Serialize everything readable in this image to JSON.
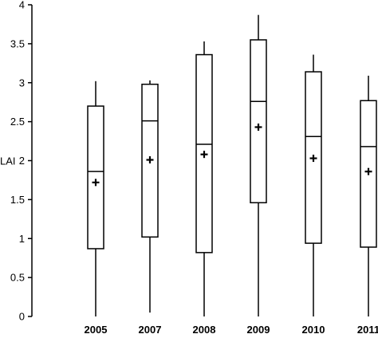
{
  "chart_data": {
    "type": "box",
    "title": "",
    "xlabel": "",
    "ylabel": "LAI",
    "ylim": [
      0,
      4
    ],
    "yticks": [
      "0",
      "0.5",
      "1",
      "1.5",
      "2",
      "2.5",
      "3",
      "3.5",
      "4"
    ],
    "grid": false,
    "legend": "none",
    "categories": [
      "2005",
      "2007",
      "2008",
      "2009",
      "2010",
      "2011"
    ],
    "series": [
      {
        "min": [
          0.0,
          0.05,
          0.0,
          0.0,
          0.0,
          0.0
        ],
        "q1": [
          0.87,
          1.02,
          0.82,
          1.46,
          0.94,
          0.89
        ],
        "median": [
          1.86,
          2.51,
          2.21,
          2.76,
          2.31,
          2.18
        ],
        "q3": [
          2.7,
          2.98,
          3.36,
          3.55,
          3.14,
          2.77
        ],
        "max": [
          3.02,
          3.03,
          3.53,
          3.87,
          3.36,
          3.09
        ],
        "mean": [
          1.72,
          2.01,
          2.08,
          2.43,
          2.03,
          1.86
        ]
      }
    ],
    "colors": {
      "stroke": "#000000",
      "fill": "#ffffff"
    },
    "mean_marker": "plus"
  }
}
